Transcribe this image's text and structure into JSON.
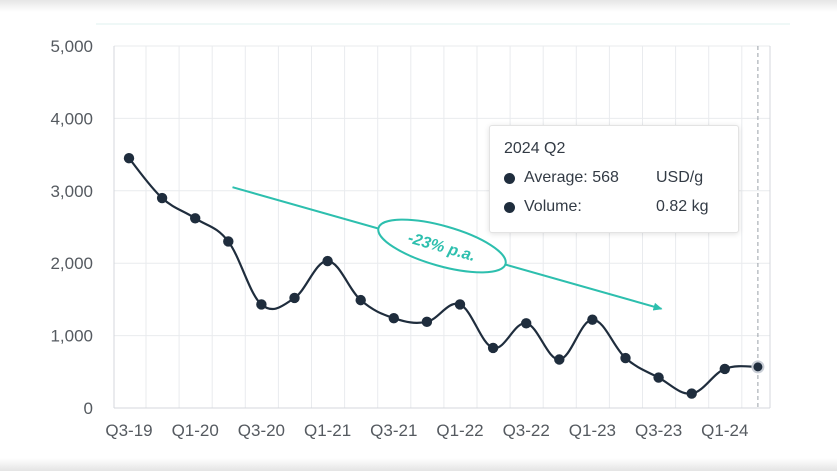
{
  "chart_data": {
    "type": "line",
    "x_tick_labels": [
      "Q3-19",
      "Q1-20",
      "Q3-20",
      "Q1-21",
      "Q3-21",
      "Q1-22",
      "Q3-22",
      "Q1-23",
      "Q3-23",
      "Q1-24"
    ],
    "y_tick_labels": [
      "0",
      "1,000",
      "2,000",
      "3,000",
      "4,000",
      "5,000"
    ],
    "ylim": [
      0,
      5000
    ],
    "x": [
      "Q3-19",
      "Q4-19",
      "Q1-20",
      "Q2-20",
      "Q3-20",
      "Q4-20",
      "Q1-21",
      "Q2-21",
      "Q3-21",
      "Q4-21",
      "Q1-22",
      "Q2-22",
      "Q3-22",
      "Q4-22",
      "Q1-23",
      "Q2-23",
      "Q3-23",
      "Q4-23",
      "Q1-24",
      "Q2-24"
    ],
    "values": [
      3450,
      2900,
      2620,
      2300,
      1430,
      1520,
      2030,
      1490,
      1240,
      1190,
      1430,
      830,
      1170,
      670,
      1220,
      690,
      420,
      200,
      540,
      568
    ],
    "series_color": "#1f2d3d",
    "trend": {
      "label": "-23% p.a.",
      "color": "#2dbfae",
      "from": {
        "x": "Q4-20",
        "y": 3050
      },
      "to": {
        "x": "Q2-23",
        "y": 1370
      }
    },
    "grid": true
  },
  "tooltip": {
    "title": "2024 Q2",
    "rows": [
      {
        "label": "Average: 568",
        "value": "USD/g"
      },
      {
        "label": "Volume:",
        "value": "0.82 kg"
      }
    ]
  }
}
